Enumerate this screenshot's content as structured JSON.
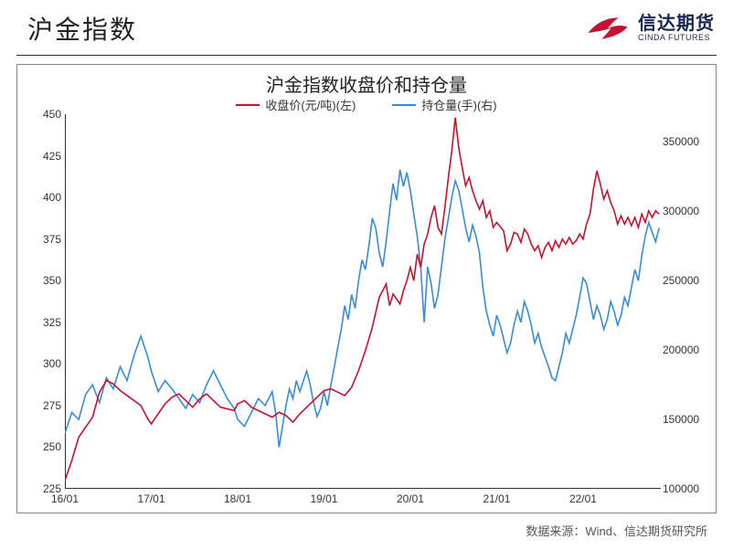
{
  "header": {
    "title": "沪金指数",
    "logo_cn": "信达期货",
    "logo_en": "CINDA FUTURES",
    "logo_colors": {
      "swoosh": "#c41230",
      "text": "#1a2850"
    }
  },
  "chart": {
    "title": "沪金指数收盘价和持仓量",
    "title_fontsize": 20,
    "background_color": "#ffffff",
    "border_color": "#888888",
    "axis_color": "#333333",
    "tick_fontsize": 12,
    "legend": [
      {
        "label": "收盘价(元/吨)(左)",
        "color": "#c8102e"
      },
      {
        "label": "持仓量(手)(右)",
        "color": "#3a8bd8"
      }
    ],
    "x": {
      "labels": [
        "16/01",
        "17/01",
        "18/01",
        "19/01",
        "20/01",
        "21/01",
        "22/01"
      ],
      "positions": [
        0,
        1,
        2,
        3,
        4,
        5,
        6
      ],
      "domain_max": 6.9
    },
    "y_left": {
      "min": 225,
      "max": 450,
      "step": 25,
      "ticks": [
        225,
        250,
        275,
        300,
        325,
        350,
        375,
        400,
        425,
        450
      ]
    },
    "y_right": {
      "min": 100000,
      "max": 370000,
      "ticks": [
        100000,
        150000,
        200000,
        250000,
        300000,
        350000
      ]
    },
    "series_close": {
      "color": "#c8102e",
      "width": 1.6,
      "points": [
        [
          0.0,
          230
        ],
        [
          0.08,
          242
        ],
        [
          0.16,
          256
        ],
        [
          0.24,
          262
        ],
        [
          0.32,
          268
        ],
        [
          0.4,
          283
        ],
        [
          0.48,
          290
        ],
        [
          0.56,
          288
        ],
        [
          0.64,
          284
        ],
        [
          0.72,
          281
        ],
        [
          0.8,
          278
        ],
        [
          0.88,
          275
        ],
        [
          0.96,
          267
        ],
        [
          1.0,
          264
        ],
        [
          1.08,
          270
        ],
        [
          1.16,
          276
        ],
        [
          1.24,
          280
        ],
        [
          1.32,
          282
        ],
        [
          1.4,
          278
        ],
        [
          1.48,
          274
        ],
        [
          1.56,
          279
        ],
        [
          1.64,
          282
        ],
        [
          1.72,
          278
        ],
        [
          1.8,
          274
        ],
        [
          1.88,
          273
        ],
        [
          1.96,
          272
        ],
        [
          2.0,
          276
        ],
        [
          2.08,
          278
        ],
        [
          2.16,
          274
        ],
        [
          2.24,
          272
        ],
        [
          2.32,
          270
        ],
        [
          2.4,
          268
        ],
        [
          2.48,
          271
        ],
        [
          2.56,
          269
        ],
        [
          2.64,
          265
        ],
        [
          2.72,
          270
        ],
        [
          2.8,
          274
        ],
        [
          2.88,
          278
        ],
        [
          2.96,
          282
        ],
        [
          3.0,
          284
        ],
        [
          3.08,
          285
        ],
        [
          3.16,
          283
        ],
        [
          3.24,
          281
        ],
        [
          3.32,
          286
        ],
        [
          3.4,
          296
        ],
        [
          3.48,
          308
        ],
        [
          3.56,
          322
        ],
        [
          3.64,
          340
        ],
        [
          3.72,
          348
        ],
        [
          3.76,
          335
        ],
        [
          3.8,
          342
        ],
        [
          3.88,
          336
        ],
        [
          3.92,
          344
        ],
        [
          3.96,
          350
        ],
        [
          4.0,
          358
        ],
        [
          4.04,
          350
        ],
        [
          4.08,
          366
        ],
        [
          4.12,
          358
        ],
        [
          4.16,
          372
        ],
        [
          4.2,
          378
        ],
        [
          4.24,
          388
        ],
        [
          4.28,
          395
        ],
        [
          4.32,
          382
        ],
        [
          4.36,
          378
        ],
        [
          4.4,
          394
        ],
        [
          4.44,
          412
        ],
        [
          4.48,
          428
        ],
        [
          4.52,
          448
        ],
        [
          4.56,
          430
        ],
        [
          4.6,
          418
        ],
        [
          4.64,
          407
        ],
        [
          4.68,
          412
        ],
        [
          4.72,
          404
        ],
        [
          4.76,
          398
        ],
        [
          4.8,
          393
        ],
        [
          4.84,
          398
        ],
        [
          4.88,
          388
        ],
        [
          4.92,
          392
        ],
        [
          4.96,
          382
        ],
        [
          5.0,
          385
        ],
        [
          5.08,
          380
        ],
        [
          5.12,
          368
        ],
        [
          5.16,
          372
        ],
        [
          5.2,
          379
        ],
        [
          5.24,
          378
        ],
        [
          5.28,
          373
        ],
        [
          5.32,
          381
        ],
        [
          5.36,
          378
        ],
        [
          5.4,
          372
        ],
        [
          5.44,
          368
        ],
        [
          5.48,
          371
        ],
        [
          5.52,
          364
        ],
        [
          5.56,
          370
        ],
        [
          5.6,
          373
        ],
        [
          5.64,
          368
        ],
        [
          5.68,
          374
        ],
        [
          5.72,
          370
        ],
        [
          5.76,
          375
        ],
        [
          5.8,
          372
        ],
        [
          5.84,
          376
        ],
        [
          5.88,
          372
        ],
        [
          5.92,
          374
        ],
        [
          5.96,
          378
        ],
        [
          6.0,
          375
        ],
        [
          6.04,
          384
        ],
        [
          6.08,
          390
        ],
        [
          6.12,
          405
        ],
        [
          6.16,
          416
        ],
        [
          6.2,
          408
        ],
        [
          6.24,
          399
        ],
        [
          6.28,
          404
        ],
        [
          6.32,
          397
        ],
        [
          6.36,
          392
        ],
        [
          6.4,
          384
        ],
        [
          6.44,
          389
        ],
        [
          6.48,
          384
        ],
        [
          6.52,
          388
        ],
        [
          6.56,
          383
        ],
        [
          6.6,
          388
        ],
        [
          6.64,
          382
        ],
        [
          6.68,
          390
        ],
        [
          6.72,
          385
        ],
        [
          6.76,
          392
        ],
        [
          6.8,
          388
        ],
        [
          6.84,
          392
        ],
        [
          6.88,
          390
        ]
      ]
    },
    "series_oi": {
      "color": "#3a8bd8",
      "width": 1.6,
      "points": [
        [
          0.0,
          140000
        ],
        [
          0.08,
          155000
        ],
        [
          0.16,
          150000
        ],
        [
          0.24,
          168000
        ],
        [
          0.32,
          175000
        ],
        [
          0.4,
          162000
        ],
        [
          0.48,
          180000
        ],
        [
          0.56,
          172000
        ],
        [
          0.64,
          188000
        ],
        [
          0.72,
          178000
        ],
        [
          0.8,
          196000
        ],
        [
          0.88,
          210000
        ],
        [
          0.96,
          195000
        ],
        [
          1.0,
          185000
        ],
        [
          1.08,
          170000
        ],
        [
          1.16,
          178000
        ],
        [
          1.24,
          172000
        ],
        [
          1.32,
          165000
        ],
        [
          1.4,
          158000
        ],
        [
          1.48,
          168000
        ],
        [
          1.56,
          162000
        ],
        [
          1.64,
          175000
        ],
        [
          1.72,
          185000
        ],
        [
          1.8,
          175000
        ],
        [
          1.88,
          165000
        ],
        [
          1.96,
          158000
        ],
        [
          2.0,
          150000
        ],
        [
          2.08,
          145000
        ],
        [
          2.16,
          155000
        ],
        [
          2.24,
          165000
        ],
        [
          2.32,
          160000
        ],
        [
          2.4,
          170000
        ],
        [
          2.44,
          155000
        ],
        [
          2.48,
          130000
        ],
        [
          2.52,
          145000
        ],
        [
          2.56,
          160000
        ],
        [
          2.6,
          172000
        ],
        [
          2.64,
          165000
        ],
        [
          2.68,
          178000
        ],
        [
          2.72,
          170000
        ],
        [
          2.8,
          185000
        ],
        [
          2.84,
          175000
        ],
        [
          2.88,
          162000
        ],
        [
          2.92,
          152000
        ],
        [
          2.96,
          158000
        ],
        [
          3.0,
          170000
        ],
        [
          3.04,
          160000
        ],
        [
          3.08,
          175000
        ],
        [
          3.12,
          188000
        ],
        [
          3.16,
          202000
        ],
        [
          3.2,
          215000
        ],
        [
          3.24,
          232000
        ],
        [
          3.28,
          222000
        ],
        [
          3.32,
          240000
        ],
        [
          3.36,
          230000
        ],
        [
          3.4,
          250000
        ],
        [
          3.44,
          265000
        ],
        [
          3.48,
          258000
        ],
        [
          3.52,
          275000
        ],
        [
          3.56,
          295000
        ],
        [
          3.6,
          288000
        ],
        [
          3.64,
          270000
        ],
        [
          3.68,
          260000
        ],
        [
          3.72,
          278000
        ],
        [
          3.76,
          300000
        ],
        [
          3.8,
          320000
        ],
        [
          3.84,
          308000
        ],
        [
          3.88,
          330000
        ],
        [
          3.92,
          318000
        ],
        [
          3.96,
          328000
        ],
        [
          4.0,
          315000
        ],
        [
          4.04,
          298000
        ],
        [
          4.08,
          282000
        ],
        [
          4.12,
          260000
        ],
        [
          4.16,
          220000
        ],
        [
          4.2,
          260000
        ],
        [
          4.24,
          248000
        ],
        [
          4.28,
          230000
        ],
        [
          4.32,
          240000
        ],
        [
          4.36,
          260000
        ],
        [
          4.4,
          280000
        ],
        [
          4.44,
          295000
        ],
        [
          4.48,
          310000
        ],
        [
          4.52,
          322000
        ],
        [
          4.56,
          315000
        ],
        [
          4.6,
          302000
        ],
        [
          4.64,
          288000
        ],
        [
          4.68,
          278000
        ],
        [
          4.72,
          290000
        ],
        [
          4.76,
          282000
        ],
        [
          4.8,
          270000
        ],
        [
          4.84,
          245000
        ],
        [
          4.88,
          228000
        ],
        [
          4.92,
          218000
        ],
        [
          4.96,
          210000
        ],
        [
          5.0,
          225000
        ],
        [
          5.04,
          218000
        ],
        [
          5.08,
          208000
        ],
        [
          5.12,
          198000
        ],
        [
          5.16,
          205000
        ],
        [
          5.2,
          218000
        ],
        [
          5.24,
          228000
        ],
        [
          5.28,
          220000
        ],
        [
          5.32,
          235000
        ],
        [
          5.36,
          228000
        ],
        [
          5.4,
          218000
        ],
        [
          5.44,
          205000
        ],
        [
          5.48,
          212000
        ],
        [
          5.52,
          202000
        ],
        [
          5.56,
          195000
        ],
        [
          5.6,
          188000
        ],
        [
          5.64,
          180000
        ],
        [
          5.68,
          178000
        ],
        [
          5.72,
          188000
        ],
        [
          5.76,
          198000
        ],
        [
          5.8,
          212000
        ],
        [
          5.84,
          205000
        ],
        [
          5.88,
          215000
        ],
        [
          5.92,
          225000
        ],
        [
          5.96,
          238000
        ],
        [
          6.0,
          252000
        ],
        [
          6.04,
          248000
        ],
        [
          6.08,
          235000
        ],
        [
          6.12,
          222000
        ],
        [
          6.16,
          232000
        ],
        [
          6.2,
          225000
        ],
        [
          6.24,
          215000
        ],
        [
          6.28,
          222000
        ],
        [
          6.32,
          235000
        ],
        [
          6.36,
          228000
        ],
        [
          6.4,
          218000
        ],
        [
          6.44,
          225000
        ],
        [
          6.48,
          238000
        ],
        [
          6.52,
          232000
        ],
        [
          6.56,
          245000
        ],
        [
          6.6,
          258000
        ],
        [
          6.64,
          250000
        ],
        [
          6.68,
          268000
        ],
        [
          6.72,
          282000
        ],
        [
          6.76,
          292000
        ],
        [
          6.8,
          285000
        ],
        [
          6.84,
          278000
        ],
        [
          6.88,
          288000
        ]
      ]
    }
  },
  "source": "数据来源：Wind、信达期货研究所"
}
